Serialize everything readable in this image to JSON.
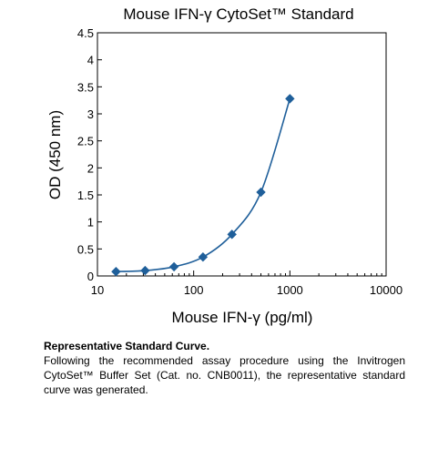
{
  "chart_data": {
    "type": "scatter",
    "title": "Mouse IFN-γ CytoSet™ Standard",
    "xlabel": "Mouse IFN-γ (pg/ml)",
    "ylabel": "OD (450 nm)",
    "x_scale": "log",
    "xlim": [
      10,
      10000
    ],
    "ylim": [
      0,
      4.5
    ],
    "x_ticks": [
      10,
      100,
      1000,
      10000
    ],
    "x_tick_labels": [
      "10",
      "100",
      "1000",
      "10000"
    ],
    "y_ticks": [
      0,
      0.5,
      1,
      1.5,
      2,
      2.5,
      3,
      3.5,
      4,
      4.5
    ],
    "y_tick_labels": [
      "0",
      "0.5",
      "1",
      "1.5",
      "2",
      "2.5",
      "3",
      "3.5",
      "4",
      "4.5"
    ],
    "grid": false,
    "fit_curve": true,
    "marker": "diamond",
    "color": "#1f5f9a",
    "series": [
      {
        "x": [
          15.6,
          31.3,
          62.5,
          125,
          250,
          500,
          1000
        ],
        "y": [
          0.08,
          0.1,
          0.17,
          0.35,
          0.77,
          1.55,
          3.28
        ]
      }
    ]
  },
  "caption": {
    "title": "Representative Standard Curve.",
    "body": "Following the recommended assay procedure using the Invitrogen CytoSet™ Buffer Set (Cat. no. CNB0011), the representative standard curve was generated."
  }
}
